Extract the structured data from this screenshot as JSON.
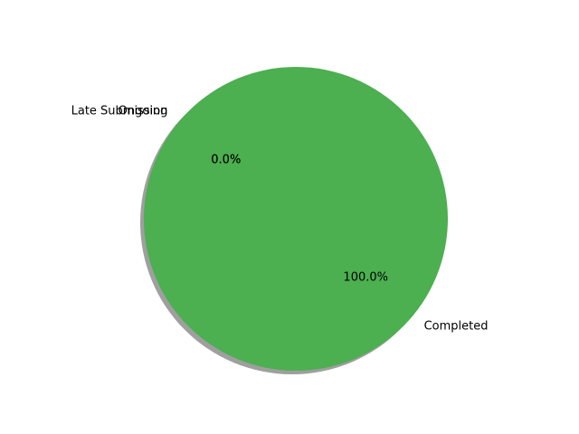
{
  "chart_data": {
    "type": "pie",
    "title": "",
    "shadow": true,
    "start_angle_deg": 140,
    "categories": [
      "Late Submission",
      "Ongoing",
      "Completed"
    ],
    "values": [
      0.0,
      0.0,
      100.0
    ],
    "pct_labels": [
      "0.0%",
      "0.0%",
      "100.0%"
    ],
    "colors": [
      "#8B4513",
      "#2F4F4F",
      "#4CAF50"
    ],
    "legend": "none"
  }
}
